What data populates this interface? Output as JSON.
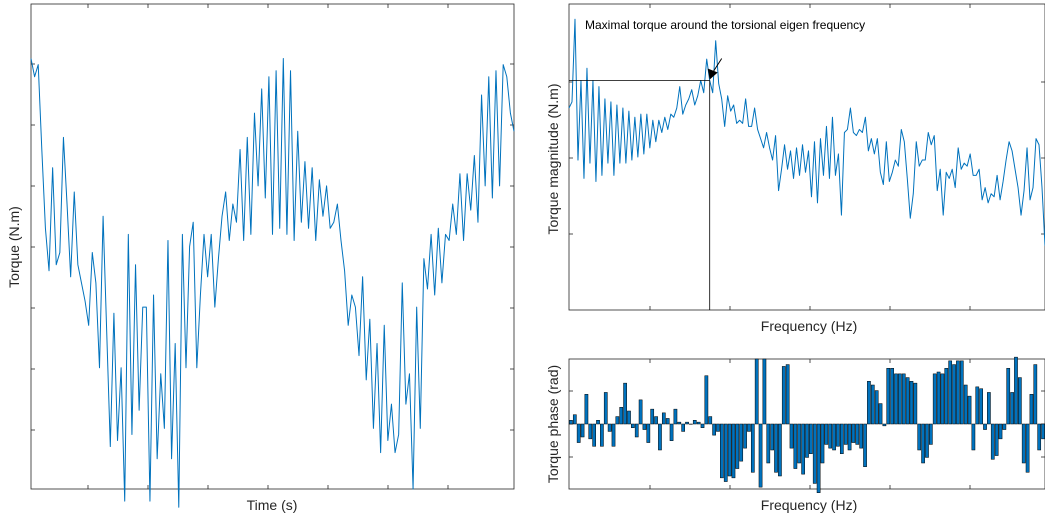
{
  "colors": {
    "line": "#0072BD",
    "bar_fill": "#0072BD",
    "bar_edge": "#000000",
    "axes": "#262626",
    "annotation": "#000000"
  },
  "chart_data": [
    {
      "id": "time-signal",
      "type": "line",
      "title": "",
      "xlabel": "Time (s)",
      "ylabel": "Torque (N.m)",
      "x_ticks_labeled": false,
      "y_ticks_labeled": false,
      "grid": false,
      "ylim": [
        -4,
        4
      ],
      "series": [
        {
          "values": [
            3.1,
            2.8,
            3.0,
            1.6,
            0.3,
            -0.4,
            1.3,
            -0.3,
            -0.1,
            1.8,
            0.7,
            -0.5,
            0.9,
            -0.3,
            -0.6,
            -0.9,
            -1.3,
            -0.1,
            -0.6,
            -2.0,
            0.5,
            -1.4,
            -3.3,
            -1.1,
            -3.2,
            -2.0,
            -4.2,
            0.2,
            -3.1,
            -0.3,
            -2.7,
            -1.0,
            -1.0,
            -4.2,
            -0.8,
            -3.5,
            -2.1,
            -3.0,
            0.1,
            -3.5,
            -1.6,
            -4.3,
            0.2,
            -2.0,
            0.0,
            0.4,
            -2.0,
            -0.8,
            0.2,
            -0.5,
            0.2,
            -1.0,
            -0.2,
            0.5,
            0.9,
            0.1,
            0.7,
            0.4,
            1.6,
            0.1,
            1.8,
            0.2,
            2.2,
            1.0,
            2.6,
            0.8,
            2.8,
            0.2,
            2.9,
            0.3,
            3.1,
            0.2,
            2.9,
            0.1,
            1.9,
            0.4,
            1.4,
            0.3,
            1.3,
            0.1,
            1.1,
            0.5,
            1.0,
            0.3,
            0.4,
            0.7,
            0.1,
            -0.4,
            -1.3,
            -0.8,
            -1.0,
            -1.8,
            -0.5,
            -2.2,
            -1.2,
            -3.0,
            -1.6,
            -3.4,
            -1.3,
            -3.2,
            -2.6,
            -3.4,
            -3.1,
            -0.6,
            -2.6,
            -2.1,
            -4.0,
            -1.0,
            -3.0,
            -0.2,
            -0.7,
            0.2,
            -0.8,
            0.3,
            -0.6,
            0.2,
            0.1,
            0.7,
            0.2,
            1.2,
            0.1,
            1.2,
            0.6,
            1.5,
            0.4,
            2.5,
            1.0,
            2.8,
            0.8,
            2.9,
            1.0,
            3.0,
            2.8,
            2.2,
            1.9
          ]
        }
      ]
    },
    {
      "id": "magnitude-spectrum",
      "type": "line",
      "title": "",
      "xlabel": "Frequency (Hz)",
      "ylabel": "Torque magnitude (N.m)",
      "x_ticks_labeled": false,
      "y_ticks_labeled": false,
      "grid": false,
      "ylim": [
        0,
        100
      ],
      "series": [
        {
          "values": [
            66,
            68,
            95,
            49,
            75,
            43,
            79,
            48,
            75,
            42,
            73,
            44,
            69,
            48,
            68,
            44,
            67,
            48,
            66,
            48,
            65,
            49,
            63,
            50,
            64,
            51,
            64,
            53,
            62,
            55,
            62,
            58,
            63,
            59,
            64,
            63,
            66,
            73,
            64,
            67,
            69,
            72,
            67,
            70,
            75,
            71,
            82,
            75,
            71,
            88,
            74,
            69,
            60,
            70,
            65,
            67,
            61,
            62,
            61,
            69,
            60,
            60,
            66,
            59,
            56,
            53,
            58,
            53,
            49,
            57,
            39,
            46,
            54,
            46,
            52,
            43,
            53,
            44,
            54,
            45,
            52,
            37,
            55,
            35,
            56,
            44,
            60,
            43,
            63,
            44,
            51,
            31,
            58,
            59,
            66,
            58,
            57,
            59,
            58,
            63,
            52,
            56,
            51,
            56,
            45,
            41,
            55,
            42,
            45,
            49,
            47,
            59,
            55,
            43,
            30,
            38,
            55,
            47,
            49,
            49,
            58,
            54,
            57,
            39,
            46,
            31,
            45,
            43,
            46,
            40,
            53,
            46,
            48,
            47,
            51,
            44,
            44,
            46,
            36,
            40,
            35,
            38,
            37,
            44,
            36,
            42,
            49,
            55,
            52,
            46,
            40,
            31,
            39,
            53,
            36,
            40,
            56,
            54,
            40,
            21
          ]
        }
      ],
      "annotation": {
        "text": "Maximal torque around the torsional eigen frequency",
        "target_index": 47
      }
    },
    {
      "id": "phase-spectrum",
      "type": "bar",
      "title": "",
      "xlabel": "Frequency (Hz)",
      "ylabel": "Torque phase (rad)",
      "x_ticks_labeled": false,
      "y_ticks_labeled": false,
      "grid": false,
      "ylim": [
        -3.5,
        3.5
      ],
      "series": [
        {
          "values": [
            0.2,
            0.5,
            -1.0,
            -0.7,
            1.6,
            -0.8,
            -1.2,
            0.2,
            -1.2,
            1.7,
            -0.4,
            -1.2,
            0.4,
            0.9,
            2.2,
            0.7,
            -0.2,
            -0.7,
            1.3,
            -0.3,
            -1.0,
            0.8,
            0.4,
            -1.4,
            0.6,
            0.3,
            -0.9,
            0.8,
            0.1,
            -0.4,
            0.1,
            0.0,
            0.2,
            0.1,
            -0.2,
            2.6,
            0.4,
            -0.6,
            -0.4,
            -2.9,
            -3.1,
            -2.8,
            -2.9,
            -2.4,
            -2.0,
            -1.3,
            -0.4,
            -2.6,
            3.5,
            -3.4,
            3.5,
            -2.1,
            -1.4,
            -2.6,
            -2.8,
            3.1,
            3.2,
            -1.3,
            -2.4,
            -2.1,
            -2.7,
            -1.8,
            -1.6,
            -3.2,
            -3.7,
            -2.1,
            -1.1,
            -1.3,
            -1.4,
            -1.2,
            -1.6,
            -1.1,
            -1.4,
            -1.0,
            -1.1,
            -1.3,
            -2.3,
            2.3,
            2.1,
            1.8,
            1.1,
            -0.1,
            3.0,
            3.0,
            2.7,
            2.7,
            2.7,
            2.5,
            2.3,
            2.2,
            -1.4,
            -2.1,
            -1.8,
            -1.1,
            2.7,
            2.8,
            2.7,
            3.0,
            3.4,
            3.2,
            3.4,
            3.4,
            2.1,
            1.5,
            -1.4,
            2.0,
            1.9,
            -0.3,
            1.7,
            -1.9,
            -1.7,
            -0.8,
            -0.3,
            3.0,
            1.7,
            3.6,
            2.5,
            -2.1,
            -2.6,
            1.6,
            3.2,
            -1.4,
            -0.8
          ]
        }
      ]
    }
  ]
}
